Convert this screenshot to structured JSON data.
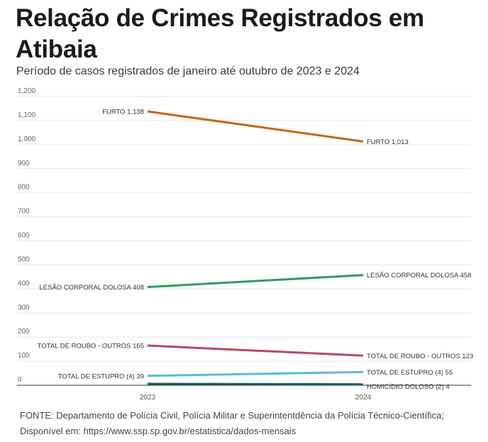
{
  "header": {
    "title": "Relação de Crimes Registrados em Atibaia",
    "subtitle": "Período de casos registrados de janeiro até outubro de 2023 e 2024"
  },
  "footer": {
    "source_line1": "FONTE: Departamento de Polícia Civil, Polícia Militar e Superintentdência da Polícia Técnico-Científica;",
    "source_line2": "Disponível em: https://www.ssp.sp.gov.br/estatistica/dados-mensais"
  },
  "chart_data": {
    "type": "line",
    "title": "Relação de Crimes Registrados em Atibaia",
    "subtitle": "Período de casos registrados de janeiro até outubro de 2023 e 2024",
    "x": [
      "2023",
      "2024"
    ],
    "xlabel": "",
    "ylabel": "",
    "ylim": [
      0,
      1200
    ],
    "yticks": [
      0,
      100,
      200,
      300,
      400,
      500,
      600,
      700,
      800,
      900,
      1000,
      1100,
      1200
    ],
    "ytick_labels": [
      "0",
      "100",
      "200",
      "300",
      "400",
      "500",
      "600",
      "700",
      "800",
      "900",
      "1,000",
      "1,100",
      "1,200"
    ],
    "grid": true,
    "legend": "none (direct labels at line ends)",
    "series": [
      {
        "name": "FURTO",
        "values": [
          1138,
          1013
        ],
        "color": "#c8650f",
        "labels": [
          "FURTO 1,138",
          "FURTO 1,013"
        ]
      },
      {
        "name": "LESÃO CORPORAL DOLOSA",
        "values": [
          408,
          458
        ],
        "color": "#2e9a62",
        "labels": [
          "LESÃO CORPORAL DOLOSA 408",
          "LESÃO CORPORAL DOLOSA 458"
        ]
      },
      {
        "name": "TOTAL DE ROUBO - OUTROS",
        "values": [
          165,
          123
        ],
        "color": "#b8485d",
        "labels": [
          "TOTAL DE ROUBO - OUTROS 165",
          "TOTAL DE ROUBO - OUTROS 123"
        ]
      },
      {
        "name": "TOTAL DE ESTUPRO (4)",
        "values": [
          39,
          55
        ],
        "color": "#58bcd8",
        "labels": [
          "TOTAL DE ESTUPRO (4) 39",
          "TOTAL DE ESTUPRO (4) 55"
        ]
      },
      {
        "name": "HOMICÍDIO DOLOSO (2)",
        "values": [
          6,
          4
        ],
        "color": "#175f6b",
        "labels": [
          "",
          "HOMICÍDIO DOLOSO (2) 4"
        ]
      }
    ]
  }
}
